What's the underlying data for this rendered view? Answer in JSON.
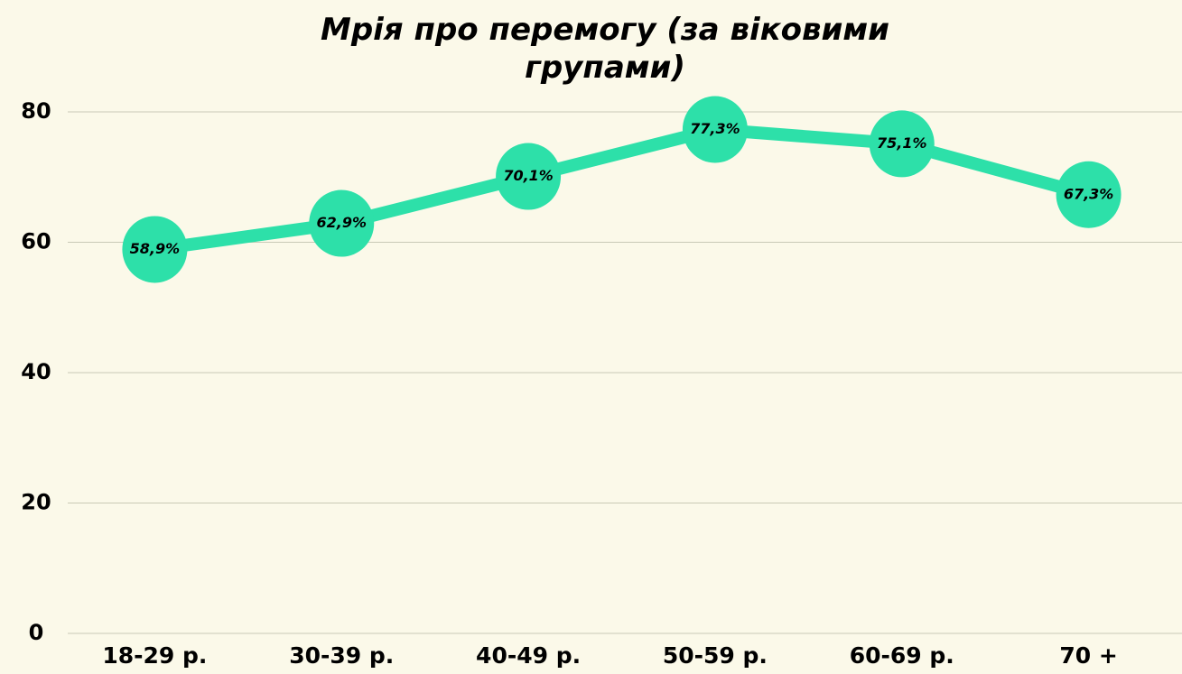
{
  "chart_data": {
    "type": "line",
    "title": "Мрія про перемогу (за віковими групами)",
    "categories": [
      "18-29 р.",
      "30-39 р.",
      "40-49 р.",
      "50-59 р.",
      "60-69 р.",
      "70 +"
    ],
    "values": [
      58.9,
      62.9,
      70.1,
      77.3,
      75.1,
      67.3
    ],
    "value_labels": [
      "58,9%",
      "62,9%",
      "70,1%",
      "77,3%",
      "75,1%",
      "67,3%"
    ],
    "color": "#2de0a9",
    "ylim": [
      0,
      80
    ],
    "yticks": [
      0,
      20,
      40,
      60,
      80
    ],
    "grid": true
  }
}
